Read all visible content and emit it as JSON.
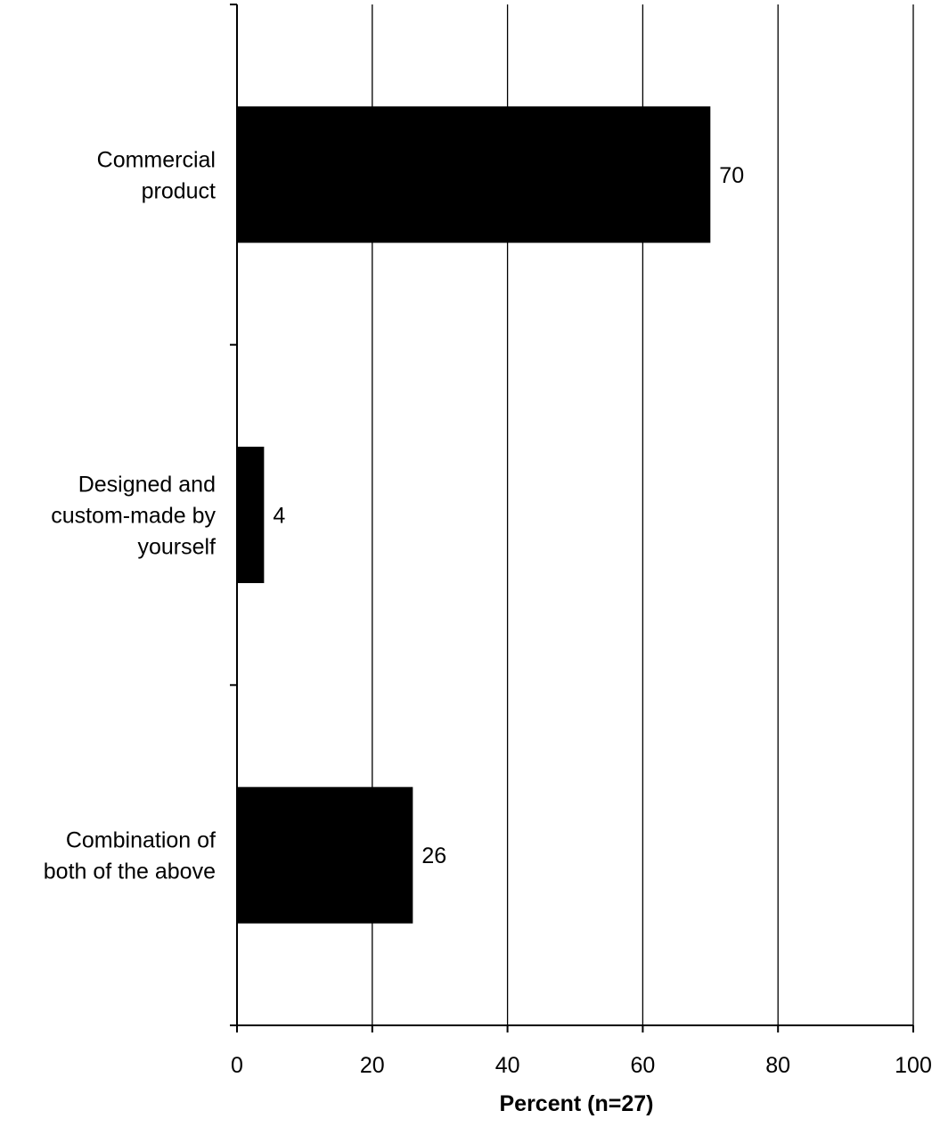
{
  "chart_data": {
    "type": "bar",
    "orientation": "horizontal",
    "categories": [
      [
        "Commercial",
        "product"
      ],
      [
        "Designed and",
        "custom-made by",
        "yourself"
      ],
      [
        "Combination of",
        "both of the above"
      ]
    ],
    "values": [
      70,
      4,
      26
    ],
    "value_labels": [
      "70",
      "4",
      "26"
    ],
    "bar_color": "#000000",
    "xlabel": "Percent (n=27)",
    "xlim": [
      0,
      100
    ],
    "xticks": [
      0,
      20,
      40,
      60,
      80,
      100
    ],
    "xtick_labels": [
      "0",
      "20",
      "40",
      "60",
      "80",
      "100"
    ],
    "grid": "vertical major gridlines",
    "legend": "none"
  }
}
